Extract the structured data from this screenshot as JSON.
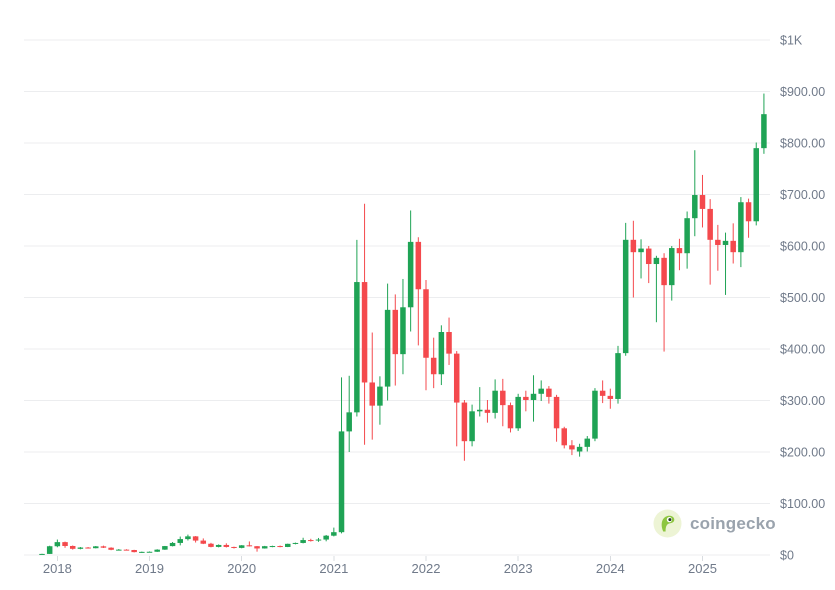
{
  "colors": {
    "up": "#1fa355",
    "down": "#f4494d",
    "grid": "#ecedef",
    "axis_text": "#707a8a",
    "tick": "#d9dce0",
    "background": "#ffffff",
    "watermark_text": "#9aa3ad",
    "gecko_circle": "#edf4d5",
    "gecko_body": "#8dc63f"
  },
  "watermark": {
    "label": "coingecko"
  },
  "chart_data": {
    "type": "candlestick",
    "interval": "monthly",
    "currency": "USD",
    "grid": "horizontal",
    "legend": "none",
    "y_axis": {
      "position": "right",
      "min": 0,
      "max": 1000,
      "step": 100,
      "tick_labels": [
        "$0",
        "$100.00",
        "$200.00",
        "$300.00",
        "$400.00",
        "$500.00",
        "$600.00",
        "$700.00",
        "$800.00",
        "$900.00",
        "$1K"
      ]
    },
    "x_axis": {
      "tick_labels": [
        "2018",
        "2019",
        "2020",
        "2021",
        "2022",
        "2023",
        "2024",
        "2025"
      ]
    },
    "columns": [
      "month",
      "open",
      "high",
      "low",
      "close"
    ],
    "candles": [
      [
        "2017-11",
        1.5,
        2.5,
        1.2,
        2.1
      ],
      [
        "2017-12",
        2.1,
        18,
        2.0,
        17
      ],
      [
        "2018-01",
        17,
        30,
        15,
        25
      ],
      [
        "2018-02",
        25,
        26,
        14,
        17.5
      ],
      [
        "2018-03",
        17.5,
        18.5,
        10.5,
        12
      ],
      [
        "2018-04",
        12,
        15.5,
        11,
        14.5
      ],
      [
        "2018-05",
        14.5,
        15.5,
        12.5,
        13.2
      ],
      [
        "2018-06",
        13.2,
        17.5,
        12.9,
        16.8
      ],
      [
        "2018-07",
        16.8,
        18.2,
        13.6,
        14.2
      ],
      [
        "2018-08",
        14.2,
        15,
        9.3,
        10.1
      ],
      [
        "2018-09",
        10.1,
        11.6,
        9,
        10.4
      ],
      [
        "2018-10",
        10.4,
        11.2,
        9.1,
        9.7
      ],
      [
        "2018-11",
        9.7,
        10.1,
        5,
        5.6
      ],
      [
        "2018-12",
        5.6,
        6.6,
        4.2,
        6.1
      ],
      [
        "2019-01",
        6.1,
        6.9,
        5.5,
        6.3
      ],
      [
        "2019-02",
        6.3,
        11.2,
        6,
        10.4
      ],
      [
        "2019-03",
        10.4,
        17.6,
        10,
        17.3
      ],
      [
        "2019-04",
        17.3,
        25.2,
        16.7,
        23.4
      ],
      [
        "2019-05",
        23.4,
        35.8,
        18.7,
        30.9
      ],
      [
        "2019-06",
        30.9,
        39.6,
        28.2,
        36.2
      ],
      [
        "2019-07",
        36.2,
        36.8,
        24.2,
        28
      ],
      [
        "2019-08",
        28,
        32.2,
        21.2,
        21.9
      ],
      [
        "2019-09",
        21.9,
        23.6,
        14.9,
        15.7
      ],
      [
        "2019-10",
        15.7,
        20.6,
        14.8,
        19.5
      ],
      [
        "2019-11",
        19.5,
        22.7,
        14.6,
        15.6
      ],
      [
        "2019-12",
        15.6,
        16.3,
        12.7,
        13.8
      ],
      [
        "2020-01",
        13.8,
        19.2,
        13,
        18.8
      ],
      [
        "2020-02",
        18.8,
        26.3,
        16.6,
        17.1
      ],
      [
        "2020-03",
        17.1,
        17.4,
        6.5,
        12.7
      ],
      [
        "2020-04",
        12.7,
        17.7,
        12.4,
        17.1
      ],
      [
        "2020-05",
        17.1,
        18.1,
        15.1,
        17.4
      ],
      [
        "2020-06",
        17.4,
        18.4,
        15,
        15.6
      ],
      [
        "2020-07",
        15.6,
        22,
        15.3,
        21.7
      ],
      [
        "2020-08",
        21.7,
        24.1,
        20.7,
        23.4
      ],
      [
        "2020-09",
        23.4,
        33.5,
        22.6,
        29
      ],
      [
        "2020-10",
        29,
        31.5,
        26.1,
        28.5
      ],
      [
        "2020-11",
        28.5,
        33.1,
        25.6,
        30
      ],
      [
        "2020-12",
        30,
        38.9,
        26.6,
        37.5
      ],
      [
        "2021-01",
        37.5,
        53.2,
        36.1,
        44.3
      ],
      [
        "2021-02",
        44.3,
        345,
        42,
        240
      ],
      [
        "2021-03",
        240,
        348,
        200,
        277
      ],
      [
        "2021-04",
        277,
        612,
        269,
        530
      ],
      [
        "2021-05",
        530,
        682,
        214,
        335
      ],
      [
        "2021-06",
        335,
        432,
        224,
        290
      ],
      [
        "2021-07",
        290,
        347,
        253,
        327
      ],
      [
        "2021-08",
        327,
        527,
        300,
        476
      ],
      [
        "2021-09",
        476,
        506,
        329,
        390
      ],
      [
        "2021-10",
        390,
        536,
        351,
        481
      ],
      [
        "2021-11",
        481,
        669,
        434,
        608
      ],
      [
        "2021-12",
        608,
        617,
        407,
        516
      ],
      [
        "2022-01",
        516,
        534,
        320,
        383
      ],
      [
        "2022-02",
        383,
        422,
        324,
        351
      ],
      [
        "2022-03",
        351,
        446,
        330,
        433
      ],
      [
        "2022-04",
        433,
        461,
        369,
        391
      ],
      [
        "2022-05",
        391,
        396,
        211,
        296
      ],
      [
        "2022-06",
        296,
        301,
        183,
        221
      ],
      [
        "2022-07",
        221,
        292,
        211,
        279
      ],
      [
        "2022-08",
        279,
        326,
        269,
        282
      ],
      [
        "2022-09",
        282,
        301,
        257,
        276
      ],
      [
        "2022-10",
        276,
        341,
        265,
        319
      ],
      [
        "2022-11",
        319,
        342,
        250,
        291
      ],
      [
        "2022-12",
        291,
        296,
        238,
        246
      ],
      [
        "2023-01",
        246,
        313,
        241,
        307
      ],
      [
        "2023-02",
        307,
        319,
        279,
        301
      ],
      [
        "2023-03",
        301,
        349,
        259,
        313
      ],
      [
        "2023-04",
        313,
        339,
        299,
        323
      ],
      [
        "2023-05",
        323,
        328,
        294,
        307
      ],
      [
        "2023-06",
        307,
        311,
        220,
        246
      ],
      [
        "2023-07",
        246,
        249,
        207,
        213
      ],
      [
        "2023-08",
        213,
        223,
        194,
        205
      ],
      [
        "2023-09",
        201,
        216,
        191,
        210
      ],
      [
        "2023-10",
        210,
        231,
        201,
        226
      ],
      [
        "2023-11",
        226,
        324,
        221,
        319
      ],
      [
        "2023-12",
        319,
        339,
        295,
        309
      ],
      [
        "2024-01",
        309,
        323,
        284,
        303
      ],
      [
        "2024-02",
        303,
        406,
        294,
        392
      ],
      [
        "2024-03",
        392,
        645,
        387,
        612
      ],
      [
        "2024-04",
        612,
        649,
        500,
        588
      ],
      [
        "2024-05",
        588,
        613,
        537,
        595
      ],
      [
        "2024-06",
        595,
        600,
        528,
        565
      ],
      [
        "2024-07",
        565,
        581,
        452,
        577
      ],
      [
        "2024-08",
        577,
        586,
        395,
        524
      ],
      [
        "2024-09",
        524,
        600,
        494,
        596
      ],
      [
        "2024-10",
        596,
        614,
        553,
        586
      ],
      [
        "2024-11",
        586,
        667,
        556,
        654
      ],
      [
        "2024-12",
        654,
        786,
        619,
        699
      ],
      [
        "2025-01",
        699,
        738,
        636,
        672
      ],
      [
        "2025-02",
        672,
        691,
        525,
        612
      ],
      [
        "2025-03",
        612,
        641,
        552,
        602
      ],
      [
        "2025-04",
        602,
        626,
        505,
        610
      ],
      [
        "2025-05",
        610,
        644,
        566,
        588
      ],
      [
        "2025-06",
        588,
        695,
        559,
        685
      ],
      [
        "2025-07",
        685,
        692,
        616,
        648
      ],
      [
        "2025-08",
        648,
        801,
        640,
        790
      ],
      [
        "2025-09",
        790,
        896,
        779,
        856
      ]
    ]
  }
}
